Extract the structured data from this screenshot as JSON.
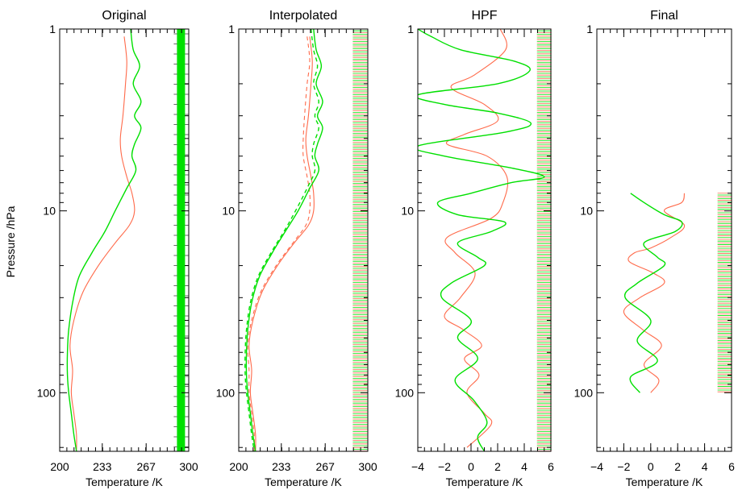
{
  "y_axis": {
    "label": "Pressure /hPa",
    "scale": "log",
    "range": [
      1,
      210
    ],
    "tick_values": [
      1,
      10,
      100
    ],
    "tick_labels": [
      "1",
      "10",
      "100"
    ],
    "inverted": true
  },
  "colors": {
    "series_a": "#ff6a4a",
    "series_b": "#00e000",
    "axes": "#000000"
  },
  "chart_data": [
    {
      "type": "line",
      "title": "Original",
      "xlabel": "Temperature /K",
      "xlim": [
        200,
        300
      ],
      "xticks": [
        200,
        233,
        267,
        300
      ],
      "xtick_labels": [
        "200",
        "233",
        "267",
        "300"
      ],
      "series": [
        {
          "color": "#ff6a4a",
          "points": [
            [
              250,
              1.1
            ],
            [
              252,
              1.5
            ],
            [
              251,
              2
            ],
            [
              249,
              3
            ],
            [
              247,
              4
            ],
            [
              248,
              5
            ],
            [
              252,
              6.5
            ],
            [
              256,
              8
            ],
            [
              258,
              10
            ],
            [
              254,
              12
            ],
            [
              243,
              15
            ],
            [
              230,
              20
            ],
            [
              218,
              28
            ],
            [
              211,
              40
            ],
            [
              208,
              55
            ],
            [
              210,
              75
            ],
            [
              209,
              100
            ],
            [
              211,
              130
            ],
            [
              213,
              170
            ],
            [
              213,
              210
            ]
          ]
        },
        {
          "color": "#00e000",
          "points": [
            [
              255,
              1
            ],
            [
              257,
              1.3
            ],
            [
              262,
              1.6
            ],
            [
              257,
              2
            ],
            [
              263,
              2.5
            ],
            [
              258,
              3
            ],
            [
              263,
              3.5
            ],
            [
              258,
              4.3
            ],
            [
              256,
              5
            ],
            [
              259,
              6
            ],
            [
              252,
              7.5
            ],
            [
              243,
              10
            ],
            [
              235,
              13
            ],
            [
              225,
              17
            ],
            [
              215,
              23
            ],
            [
              210,
              32
            ],
            [
              207,
              45
            ],
            [
              206,
              60
            ],
            [
              206,
              80
            ],
            [
              207,
              100
            ],
            [
              209,
              130
            ],
            [
              211,
              170
            ],
            [
              213,
              210
            ]
          ]
        }
      ],
      "marker_band": {
        "type": "solid",
        "x": 294,
        "p_range": [
          1,
          210
        ],
        "color": "#00e000"
      }
    },
    {
      "type": "line",
      "title": "Interpolated",
      "xlabel": "Temperature /K",
      "xlim": [
        200,
        300
      ],
      "xticks": [
        200,
        233,
        267,
        300
      ],
      "xtick_labels": [
        "200",
        "233",
        "267",
        "300"
      ],
      "series": [
        {
          "color": "#ff6a4a",
          "points": [
            [
              255,
              1.1
            ],
            [
              257,
              1.5
            ],
            [
              256,
              2
            ],
            [
              254,
              3
            ],
            [
              252,
              4
            ],
            [
              253,
              5
            ],
            [
              256,
              6.5
            ],
            [
              258,
              8
            ],
            [
              258,
              10
            ],
            [
              254,
              12
            ],
            [
              243,
              15
            ],
            [
              230,
              20
            ],
            [
              218,
              28
            ],
            [
              211,
              40
            ],
            [
              208,
              55
            ],
            [
              210,
              75
            ],
            [
              209,
              100
            ],
            [
              211,
              130
            ],
            [
              213,
              170
            ],
            [
              213,
              210
            ]
          ]
        },
        {
          "color": "#ff6a4a",
          "dash": true,
          "points": [
            [
              253,
              1.1
            ],
            [
              255,
              1.5
            ],
            [
              253,
              2
            ],
            [
              251,
              3
            ],
            [
              250,
              4
            ],
            [
              250,
              5
            ],
            [
              253,
              6.5
            ],
            [
              255,
              8
            ],
            [
              255,
              10
            ],
            [
              252,
              12
            ],
            [
              242,
              15
            ],
            [
              229,
              20
            ],
            [
              217,
              28
            ],
            [
              210,
              40
            ],
            [
              207,
              55
            ],
            [
              208,
              75
            ],
            [
              208,
              100
            ],
            [
              210,
              130
            ],
            [
              212,
              170
            ],
            [
              212,
              210
            ]
          ]
        },
        {
          "color": "#00e000",
          "points": [
            [
              258,
              1
            ],
            [
              260,
              1.3
            ],
            [
              264,
              1.6
            ],
            [
              260,
              2
            ],
            [
              265,
              2.5
            ],
            [
              261,
              3
            ],
            [
              265,
              3.5
            ],
            [
              261,
              4.3
            ],
            [
              259,
              5
            ],
            [
              262,
              6
            ],
            [
              255,
              7.5
            ],
            [
              246,
              10
            ],
            [
              236,
              13
            ],
            [
              226,
              17
            ],
            [
              216,
              23
            ],
            [
              210,
              32
            ],
            [
              207,
              45
            ],
            [
              206,
              60
            ],
            [
              206,
              80
            ],
            [
              207,
              100
            ],
            [
              209,
              130
            ],
            [
              211,
              170
            ],
            [
              213,
              210
            ]
          ]
        },
        {
          "color": "#00e000",
          "dash": true,
          "points": [
            [
              256,
              1
            ],
            [
              258,
              1.3
            ],
            [
              261,
              1.6
            ],
            [
              258,
              2
            ],
            [
              262,
              2.5
            ],
            [
              259,
              3
            ],
            [
              262,
              3.5
            ],
            [
              258,
              4.3
            ],
            [
              257,
              5
            ],
            [
              259,
              6
            ],
            [
              253,
              7.5
            ],
            [
              244,
              10
            ],
            [
              235,
              13
            ],
            [
              225,
              17
            ],
            [
              215,
              23
            ],
            [
              209,
              32
            ],
            [
              206,
              45
            ],
            [
              205,
              60
            ],
            [
              205,
              80
            ],
            [
              206,
              100
            ],
            [
              208,
              130
            ],
            [
              210,
              170
            ],
            [
              212,
              210
            ]
          ]
        }
      ],
      "marker_band": {
        "type": "ticks",
        "x": 294,
        "p_range": [
          1,
          210
        ],
        "colors": [
          "#ff6a4a",
          "#00e000"
        ]
      }
    },
    {
      "type": "line",
      "title": "HPF",
      "xlabel": "Temperature /K",
      "xlim": [
        -4,
        6
      ],
      "xticks": [
        -4,
        -2,
        0,
        2,
        4,
        6
      ],
      "xtick_labels": [
        "−4",
        "−2",
        "0",
        "2",
        "4",
        "6"
      ],
      "series": [
        {
          "color": "#ff6a4a",
          "points": [
            [
              2.2,
              1
            ],
            [
              2.6,
              1.3
            ],
            [
              0.2,
              1.8
            ],
            [
              -1.5,
              2.1
            ],
            [
              1.0,
              2.6
            ],
            [
              2.0,
              3.2
            ],
            [
              -0.5,
              3.8
            ],
            [
              -1.8,
              4.3
            ],
            [
              1.2,
              5
            ],
            [
              2.7,
              6.5
            ],
            [
              2.4,
              9
            ],
            [
              1.5,
              11
            ],
            [
              -1.8,
              14
            ],
            [
              -1.2,
              17
            ],
            [
              0.3,
              22
            ],
            [
              -0.8,
              30
            ],
            [
              -2.0,
              38
            ],
            [
              -0.6,
              45
            ],
            [
              0.8,
              55
            ],
            [
              -0.5,
              65
            ],
            [
              0.6,
              80
            ],
            [
              -0.3,
              100
            ],
            [
              1.0,
              130
            ],
            [
              1.5,
              150
            ],
            [
              -0.3,
              200
            ]
          ]
        },
        {
          "color": "#00e000",
          "points": [
            [
              -4,
              1
            ],
            [
              -3,
              1.1
            ],
            [
              -0.8,
              1.3
            ],
            [
              3.2,
              1.5
            ],
            [
              4.4,
              1.7
            ],
            [
              2,
              2.0
            ],
            [
              -4,
              2.3
            ],
            [
              -2,
              2.6
            ],
            [
              2,
              2.9
            ],
            [
              4.5,
              3.3
            ],
            [
              2.5,
              3.7
            ],
            [
              -4,
              4.4
            ],
            [
              -2,
              5
            ],
            [
              3,
              5.8
            ],
            [
              5.5,
              6.5
            ],
            [
              3,
              7
            ],
            [
              0,
              8
            ],
            [
              -2.5,
              9
            ],
            [
              -1,
              10.5
            ],
            [
              2.5,
              11.5
            ],
            [
              1.5,
              13
            ],
            [
              -1,
              15
            ],
            [
              0.5,
              18
            ],
            [
              1.0,
              20
            ],
            [
              -1.5,
              25
            ],
            [
              -2.2,
              30
            ],
            [
              0,
              40
            ],
            [
              -1,
              50
            ],
            [
              0.5,
              65
            ],
            [
              -1.2,
              85
            ],
            [
              0.2,
              110
            ],
            [
              1.2,
              145
            ],
            [
              0.5,
              175
            ],
            [
              1,
              210
            ]
          ]
        }
      ],
      "marker_band": {
        "type": "ticks",
        "x": 5.5,
        "p_range": [
          1,
          210
        ],
        "colors": [
          "#ff6a4a",
          "#00e000"
        ]
      }
    },
    {
      "type": "line",
      "title": "Final",
      "xlabel": "Temperature /K",
      "xlim": [
        -4,
        6
      ],
      "xticks": [
        -4,
        -2,
        0,
        2,
        4,
        6
      ],
      "xtick_labels": [
        "−4",
        "−2",
        "0",
        "2",
        "4",
        "6"
      ],
      "series": [
        {
          "color": "#ff6a4a",
          "points": [
            [
              2.5,
              8
            ],
            [
              2.3,
              9
            ],
            [
              1.0,
              10
            ],
            [
              2.5,
              12
            ],
            [
              1.5,
              14
            ],
            [
              0,
              16
            ],
            [
              -1.2,
              17
            ],
            [
              -1.6,
              19
            ],
            [
              0.2,
              22
            ],
            [
              1.0,
              25
            ],
            [
              -0.8,
              30
            ],
            [
              -2.0,
              36
            ],
            [
              -0.6,
              45
            ],
            [
              0.8,
              55
            ],
            [
              -0.5,
              70
            ],
            [
              0.6,
              85
            ],
            [
              0,
              100
            ]
          ]
        },
        {
          "color": "#00e000",
          "points": [
            [
              -1.5,
              8
            ],
            [
              -0.5,
              9
            ],
            [
              1.0,
              10.5
            ],
            [
              2.3,
              11.5
            ],
            [
              1.8,
              13
            ],
            [
              -0.5,
              15
            ],
            [
              0.5,
              18
            ],
            [
              1.0,
              20
            ],
            [
              -1.0,
              25
            ],
            [
              -1.9,
              30
            ],
            [
              0.0,
              40
            ],
            [
              -1.0,
              52
            ],
            [
              0.5,
              67
            ],
            [
              -1.5,
              82
            ],
            [
              -0.8,
              100
            ]
          ]
        }
      ],
      "marker_band": {
        "type": "ticks",
        "x": 5.5,
        "p_range": [
          8,
          100
        ],
        "colors": [
          "#ff6a4a",
          "#00e000"
        ]
      }
    }
  ]
}
